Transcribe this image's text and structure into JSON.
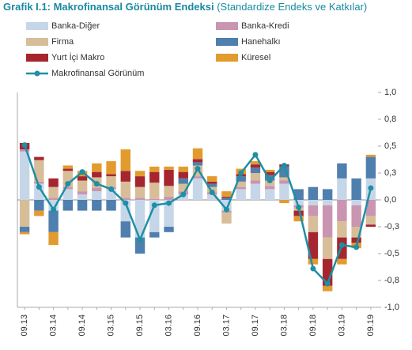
{
  "chart_data": {
    "type": "stacked-bar-line",
    "title": "Grafik I.1: Makrofinansal Görünüm Endeksi",
    "subtitle": "(Standardize Endeks ve Katkılar)",
    "categories": [
      "09.13",
      null,
      "03.14",
      null,
      "09.14",
      null,
      "03.15",
      null,
      "09.15",
      null,
      "03.16",
      null,
      "09.16",
      null,
      "03.17",
      null,
      "09.17",
      null,
      "03.18",
      null,
      "09.18",
      null,
      "03.19",
      null,
      "09.19"
    ],
    "ylim": [
      -1,
      1
    ],
    "yticks": [
      {
        "value": 1,
        "label": "1,0"
      },
      {
        "value": 0.75,
        "label": "0,8"
      },
      {
        "value": 0.5,
        "label": "0,5"
      },
      {
        "value": 0.25,
        "label": "0,3"
      },
      {
        "value": 0,
        "label": "0,0"
      },
      {
        "value": -0.25,
        "label": "-0,3"
      },
      {
        "value": -0.5,
        "label": "-0,5"
      },
      {
        "value": -0.75,
        "label": "-0,8"
      },
      {
        "value": -1,
        "label": "-1,0"
      }
    ],
    "series": [
      {
        "name": "Banka-Diğer",
        "color": "#c6d6e9",
        "values": [
          0.45,
          0.15,
          -0.1,
          0.1,
          0.05,
          0.08,
          0.1,
          -0.2,
          -0.35,
          -0.3,
          -0.25,
          0.05,
          0.2,
          0.05,
          -0.1,
          0.1,
          0.15,
          0.1,
          0.15,
          -0.05,
          -0.05,
          -0.05,
          0.2,
          -0.05,
          0.2
        ]
      },
      {
        "name": "Banka-Kredi",
        "color": "#c995b0",
        "values": [
          0.02,
          0.02,
          0.02,
          0.02,
          0.03,
          0.03,
          0.02,
          0.02,
          0.02,
          0.01,
          0.03,
          0.03,
          0.02,
          0.02,
          -0.02,
          0.02,
          0.03,
          0.03,
          0.03,
          -0.02,
          -0.1,
          -0.3,
          -0.2,
          -0.2,
          -0.15
        ]
      },
      {
        "name": "Firma",
        "color": "#d8bd99",
        "values": [
          -0.25,
          0.2,
          0.1,
          0.15,
          0.1,
          0.1,
          0.1,
          0.15,
          0.1,
          0.15,
          0.1,
          0.07,
          0.1,
          0.05,
          -0.1,
          0.05,
          0.07,
          0.05,
          0.03,
          -0.03,
          -0.15,
          -0.2,
          -0.15,
          -0.1,
          -0.08
        ]
      },
      {
        "name": "Hanehalkı",
        "color": "#4f7fae",
        "values": [
          -0.05,
          -0.1,
          -0.2,
          -0.1,
          -0.1,
          -0.1,
          -0.1,
          -0.15,
          -0.15,
          -0.05,
          -0.05,
          0.05,
          0.03,
          0.03,
          0.02,
          0.05,
          0.05,
          0.05,
          0.1,
          0.1,
          0.12,
          0.1,
          0.14,
          0.2,
          0.2
        ]
      },
      {
        "name": "Yurt İçi Makro",
        "color": "#a62630",
        "values": [
          0.06,
          0.03,
          0.08,
          0.02,
          0.04,
          0.05,
          0.02,
          0.1,
          0.1,
          0.1,
          0.15,
          0.06,
          0.03,
          0.02,
          0.01,
          0.02,
          0.03,
          0.03,
          0.02,
          -0.05,
          -0.25,
          -0.25,
          -0.2,
          -0.05,
          -0.02
        ]
      },
      {
        "name": "Küresel",
        "color": "#e39b2e",
        "values": [
          -0.02,
          -0.05,
          -0.12,
          0.03,
          0.05,
          0.08,
          0.12,
          0.2,
          0.05,
          0.05,
          0.03,
          0.05,
          0.1,
          0.05,
          0.05,
          0.05,
          0.03,
          0.02,
          -0.03,
          -0.05,
          -0.05,
          -0.05,
          -0.05,
          -0.05,
          0.02
        ]
      }
    ],
    "line": {
      "name": "Makrofinansal Görünüm",
      "color": "#1e8fa4",
      "values": [
        0.51,
        0.12,
        -0.09,
        0.15,
        0.26,
        0.15,
        0.1,
        -0.03,
        -0.37,
        -0.05,
        -0.03,
        0.05,
        0.29,
        0.07,
        -0.09,
        0.25,
        0.42,
        0.18,
        0.32,
        -0.07,
        -0.64,
        -0.78,
        -0.42,
        -0.44,
        0.11
      ]
    }
  }
}
